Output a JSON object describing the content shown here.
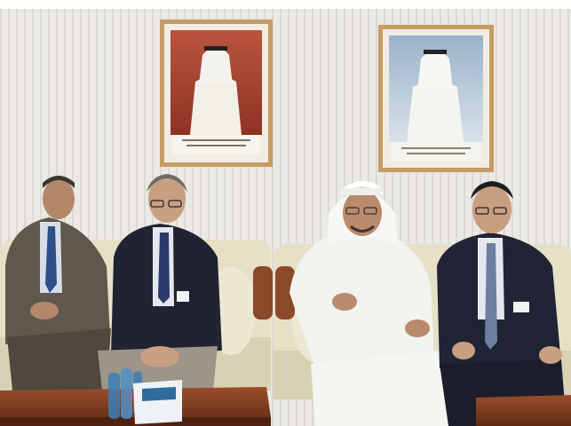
{
  "photo": {
    "description_free": true,
    "portrait_caption_left": "",
    "portrait_caption_right": ""
  },
  "colors": {
    "wall": "#e9e7e2",
    "curtain_line": "#d8d5cf",
    "frame_wood": "#c9a16a",
    "sofa": "#e6dfc4",
    "sofa_shadow": "#cfc6a5",
    "armrest_wood": "#8a4a2a",
    "table_wood": "#7a3a1e",
    "suit_dark": "#1f2230",
    "suit_gray": "#5a5449",
    "thobe_white": "#f3f3ef",
    "skin": "#c89a7c",
    "water_bottle": "#3b7fb6"
  }
}
